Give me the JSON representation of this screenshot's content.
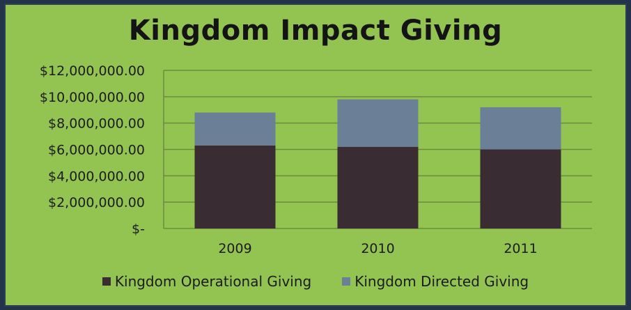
{
  "chart_data": {
    "type": "bar",
    "stacked": true,
    "title": "Kingdom Impact Giving",
    "categories": [
      "2009",
      "2010",
      "2011"
    ],
    "series": [
      {
        "name": "Kingdom Operational Giving",
        "color": "#3a2c33",
        "values": [
          6300000,
          6200000,
          6000000
        ]
      },
      {
        "name": "Kingdom Directed Giving",
        "color": "#6b7f96",
        "values": [
          2500000,
          3600000,
          3200000
        ]
      }
    ],
    "ylim": [
      0,
      12000000
    ],
    "yticks": [
      {
        "value": 0,
        "label": "$-"
      },
      {
        "value": 2000000,
        "label": "$2,000,000.00"
      },
      {
        "value": 4000000,
        "label": "$4,000,000.00"
      },
      {
        "value": 6000000,
        "label": "$6,000,000.00"
      },
      {
        "value": 8000000,
        "label": "$8,000,000.00"
      },
      {
        "value": 10000000,
        "label": "$10,000,000.00"
      },
      {
        "value": 12000000,
        "label": "$12,000,000.00"
      }
    ],
    "grid": true,
    "legend": "bottom"
  }
}
